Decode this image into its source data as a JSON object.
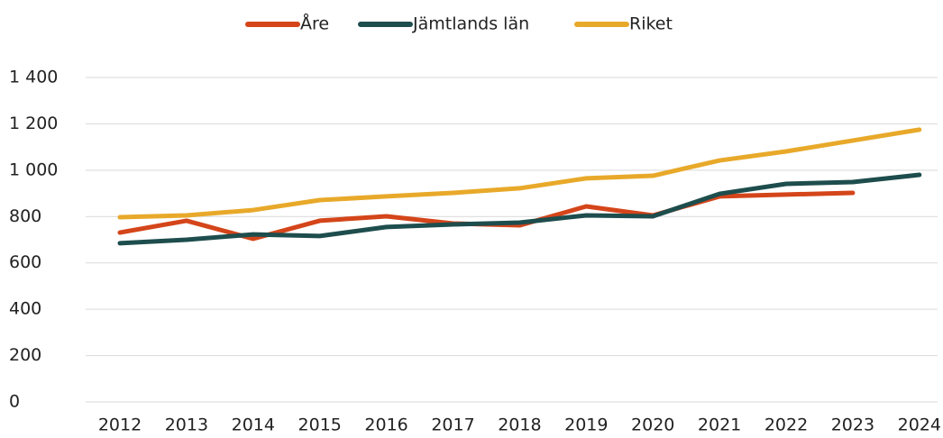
{
  "chart_data": {
    "type": "line",
    "categories": [
      "2012",
      "2013",
      "2014",
      "2015",
      "2016",
      "2017",
      "2018",
      "2019",
      "2020",
      "2021",
      "2022",
      "2023",
      "2024"
    ],
    "series": [
      {
        "name": "Åre",
        "color": "#d4451a",
        "values": [
          731,
          782,
          704,
          782,
          801,
          770,
          762,
          844,
          805,
          887,
          895,
          902,
          null
        ]
      },
      {
        "name": "Jämtlands län",
        "color": "#1e4d4d",
        "values": [
          685,
          700,
          723,
          716,
          755,
          766,
          774,
          805,
          801,
          898,
          941,
          949,
          980
        ]
      },
      {
        "name": "Riket",
        "color": "#e8a92a",
        "values": [
          797,
          805,
          828,
          871,
          887,
          902,
          922,
          965,
          976,
          1042,
          1081,
          1128,
          1175
        ]
      }
    ],
    "ylim": [
      0,
      1400
    ],
    "yticks": [
      0,
      200,
      400,
      600,
      800,
      {
        "value": 1000,
        "label": "1 000"
      },
      {
        "value": 1200,
        "label": "1 200"
      },
      {
        "value": 1400,
        "label": "1 400"
      }
    ],
    "grid": true,
    "legend": "top"
  }
}
